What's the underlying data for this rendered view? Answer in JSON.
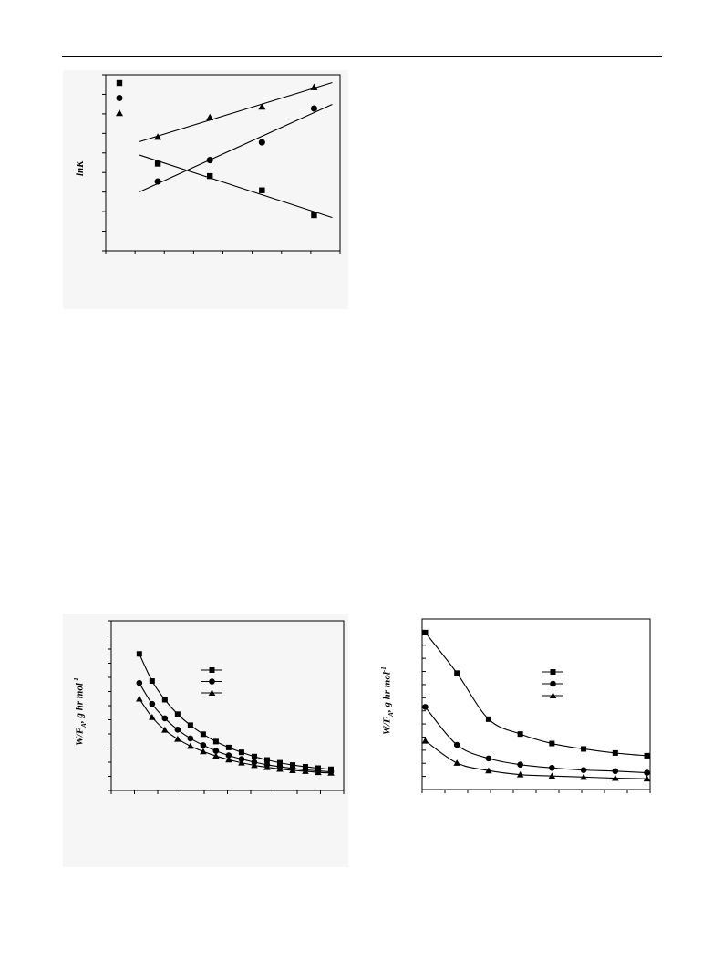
{
  "chart_data": [
    {
      "type": "scatter",
      "ylabel": "lnK",
      "series": [
        {
          "marker": "square",
          "x": [
            1,
            2,
            3,
            4
          ],
          "y": [
            4.9,
            4.2,
            3.4,
            2.0
          ],
          "fit": "linear"
        },
        {
          "marker": "circle",
          "x": [
            1,
            2,
            3,
            4
          ],
          "y": [
            3.9,
            5.1,
            6.1,
            8.0
          ],
          "fit": "linear"
        },
        {
          "marker": "triangle",
          "x": [
            1,
            2,
            3,
            4
          ],
          "y": [
            6.4,
            7.5,
            8.1,
            9.2
          ],
          "fit": "linear"
        }
      ],
      "xlim": [
        0,
        4.5
      ],
      "ylim": [
        0,
        9.9
      ],
      "legend": {
        "position": "top-left",
        "labelled": false
      }
    },
    {
      "type": "line",
      "ylabel": "W/FA, g hr mol-1",
      "x": [
        1,
        2,
        3,
        4,
        5,
        6,
        7,
        8,
        9,
        10,
        11,
        12,
        13,
        14,
        15,
        16
      ],
      "series": [
        {
          "marker": "square",
          "values": [
            4.83,
            3.87,
            3.21,
            2.7,
            2.31,
            1.99,
            1.73,
            1.52,
            1.35,
            1.2,
            1.08,
            0.98,
            0.9,
            0.84,
            0.79,
            0.75
          ]
        },
        {
          "marker": "circle",
          "values": [
            3.8,
            3.06,
            2.55,
            2.15,
            1.84,
            1.6,
            1.4,
            1.24,
            1.11,
            1.0,
            0.91,
            0.84,
            0.78,
            0.73,
            0.69,
            0.66
          ]
        },
        {
          "marker": "triangle",
          "values": [
            3.24,
            2.59,
            2.14,
            1.82,
            1.57,
            1.38,
            1.22,
            1.09,
            0.98,
            0.89,
            0.82,
            0.76,
            0.71,
            0.68,
            0.64,
            0.62
          ]
        }
      ],
      "xlim": [
        -1.2,
        17
      ],
      "ylim": [
        0,
        6
      ],
      "legend": {
        "position": "upper-right",
        "labelled": false
      }
    },
    {
      "type": "line",
      "ylabel": "W/FA, g hr mol-1",
      "x": [
        1,
        2,
        3,
        4,
        5,
        6,
        7,
        8
      ],
      "series": [
        {
          "marker": "square",
          "values": [
            5.8,
            4.3,
            2.6,
            2.05,
            1.7,
            1.5,
            1.35,
            1.25
          ]
        },
        {
          "marker": "circle",
          "values": [
            3.05,
            1.65,
            1.15,
            0.92,
            0.8,
            0.72,
            0.68,
            0.62
          ]
        },
        {
          "marker": "triangle",
          "values": [
            1.8,
            0.98,
            0.7,
            0.55,
            0.5,
            0.46,
            0.42,
            0.4
          ]
        }
      ],
      "xlim": [
        0.9,
        8.1
      ],
      "ylim": [
        0,
        6.3
      ],
      "legend": {
        "position": "upper-right",
        "labelled": false
      }
    }
  ]
}
